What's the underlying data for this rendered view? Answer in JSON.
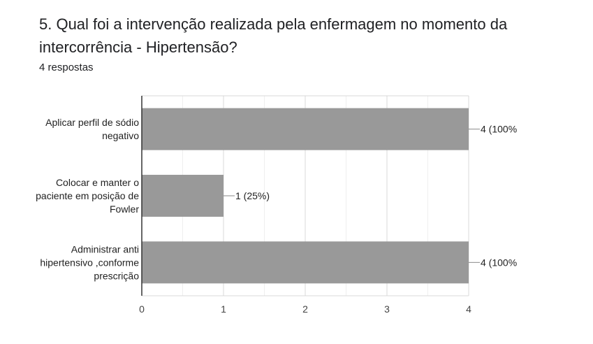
{
  "question": {
    "title": "5. Qual foi a intervenção realizada pela enfermagem no momento da intercorrência - Hipertensão?",
    "responses": "4 respostas"
  },
  "chart_data": {
    "type": "bar",
    "orientation": "horizontal",
    "categories": [
      [
        "Aplicar perfil de sódio",
        "negativo"
      ],
      [
        "Colocar e manter o",
        "paciente em posição de",
        "Fowler"
      ],
      [
        "Administrar anti",
        "hipertensivo ,conforme",
        "prescrição"
      ]
    ],
    "values": [
      4,
      1,
      4
    ],
    "data_labels": [
      "4 (100%",
      "1 (25%)",
      "4 (100%"
    ],
    "xlim": [
      0,
      4
    ],
    "xticks": [
      "0",
      "1",
      "2",
      "3",
      "4"
    ],
    "bar_color": "#999999",
    "grid": true
  }
}
